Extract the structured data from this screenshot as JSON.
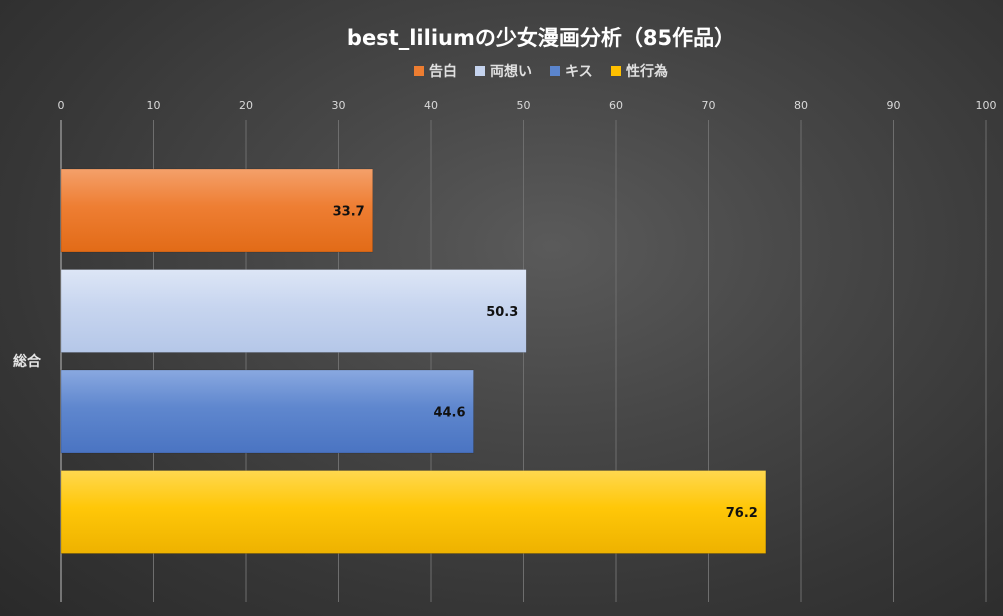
{
  "chart_data": {
    "type": "bar",
    "orientation": "horizontal",
    "title": "best_liliumの少女漫画分析（85作品）",
    "categories": [
      "総合"
    ],
    "series": [
      {
        "name": "告白",
        "values": [
          33.7
        ],
        "color": "#ed7d31"
      },
      {
        "name": "両想い",
        "values": [
          50.3
        ],
        "color": "#c5d3ee"
      },
      {
        "name": "キス",
        "values": [
          44.6
        ],
        "color": "#5b85cd"
      },
      {
        "name": "性行為",
        "values": [
          76.2
        ],
        "color": "#ffc000"
      }
    ],
    "xlim": [
      0,
      100
    ],
    "x_ticks": [
      0,
      10,
      20,
      30,
      40,
      50,
      60,
      70,
      80,
      90,
      100
    ],
    "x_axis_position": "top",
    "legend_position": "top",
    "grid": true,
    "data_labels": true
  }
}
